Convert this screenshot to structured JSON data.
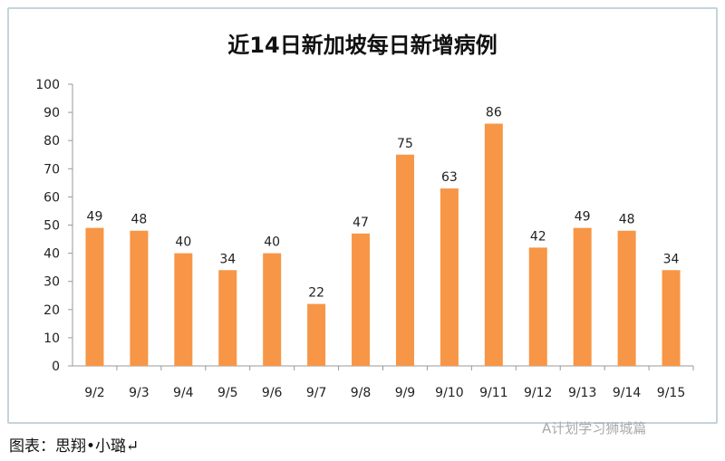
{
  "chart_data": {
    "type": "bar",
    "title": "近14日新加坡每日新增病例",
    "categories": [
      "9/2",
      "9/3",
      "9/4",
      "9/5",
      "9/6",
      "9/7",
      "9/8",
      "9/9",
      "9/10",
      "9/11",
      "9/12",
      "9/13",
      "9/14",
      "9/15"
    ],
    "values": [
      49,
      48,
      40,
      34,
      40,
      22,
      47,
      75,
      63,
      86,
      42,
      49,
      48,
      34
    ],
    "yticks": [
      0,
      10,
      20,
      30,
      40,
      50,
      60,
      70,
      80,
      90,
      100
    ],
    "ylim": [
      0,
      100
    ],
    "xlabel": "",
    "ylabel": "",
    "grid": false,
    "bar_color": "#f79646"
  },
  "caption": "图表：思翔•小璐↵",
  "watermark": "A计划学习狮城篇"
}
